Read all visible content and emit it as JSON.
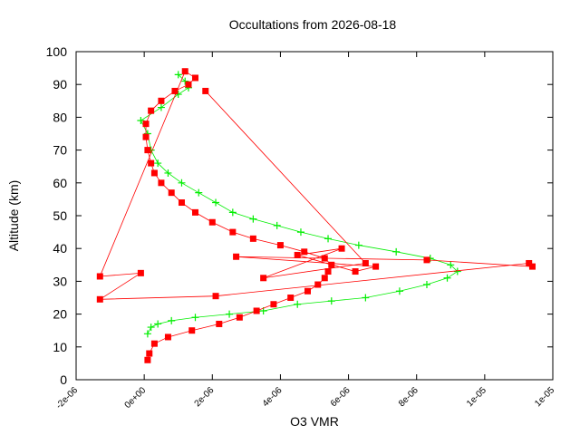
{
  "chart_data": {
    "type": "scatter",
    "title": "Occultations from 2026-08-18",
    "xlabel": "O3 VMR",
    "ylabel": "Altitude (km)",
    "xlim": [
      -2e-06,
      1.2e-05
    ],
    "ylim": [
      0,
      100
    ],
    "x_ticks": [
      -2e-06,
      0,
      2e-06,
      4e-06,
      6e-06,
      8e-06,
      1e-05,
      1.2e-05
    ],
    "x_tick_labels": [
      "-2e-06",
      "0e+00",
      "2e-06",
      "4e-06",
      "6e-06",
      "8e-06",
      "1e-05",
      "1e-05"
    ],
    "y_ticks": [
      0,
      10,
      20,
      30,
      40,
      50,
      60,
      70,
      80,
      90,
      100
    ],
    "y_tick_labels": [
      "0",
      "10",
      "20",
      "30",
      "40",
      "50",
      "60",
      "70",
      "80",
      "90",
      "100"
    ],
    "grid": false,
    "legend": "none",
    "series": [
      {
        "color": "#00ee00",
        "marker": "plus",
        "points": [
          [
            1e-07,
            14
          ],
          [
            2e-07,
            16
          ],
          [
            4e-07,
            17
          ],
          [
            8e-07,
            18
          ],
          [
            1.5e-06,
            19
          ],
          [
            2.5e-06,
            20
          ],
          [
            3.5e-06,
            21
          ],
          [
            4.5e-06,
            23
          ],
          [
            5.5e-06,
            24
          ],
          [
            6.5e-06,
            25
          ],
          [
            7.5e-06,
            27
          ],
          [
            8.3e-06,
            29
          ],
          [
            8.9e-06,
            31
          ],
          [
            9.2e-06,
            33
          ],
          [
            9e-06,
            35
          ],
          [
            8.4e-06,
            37
          ],
          [
            7.4e-06,
            39
          ],
          [
            6.3e-06,
            41
          ],
          [
            5.4e-06,
            43
          ],
          [
            4.6e-06,
            45
          ],
          [
            3.9e-06,
            47
          ],
          [
            3.2e-06,
            49
          ],
          [
            2.6e-06,
            51
          ],
          [
            2.1e-06,
            54
          ],
          [
            1.6e-06,
            57
          ],
          [
            1.1e-06,
            60
          ],
          [
            7e-07,
            63
          ],
          [
            4e-07,
            66
          ],
          [
            2e-07,
            70
          ],
          [
            1e-07,
            75
          ],
          [
            -1e-07,
            79
          ],
          [
            5e-07,
            83
          ],
          [
            1e-06,
            87
          ],
          [
            1.3e-06,
            89
          ],
          [
            1.2e-06,
            91
          ],
          [
            1e-06,
            93
          ]
        ]
      },
      {
        "color": "#ff0000",
        "marker": "square",
        "points": [
          [
            1e-07,
            6
          ],
          [
            1.5e-07,
            8
          ],
          [
            3e-07,
            11
          ],
          [
            7e-07,
            13
          ],
          [
            1.4e-06,
            15
          ],
          [
            2.2e-06,
            17
          ],
          [
            2.8e-06,
            19
          ],
          [
            3.3e-06,
            21
          ],
          [
            3.8e-06,
            23
          ],
          [
            4.3e-06,
            25
          ],
          [
            4.8e-06,
            27
          ],
          [
            5.1e-06,
            29
          ],
          [
            5.3e-06,
            31
          ],
          [
            5.4e-06,
            33
          ],
          [
            5.5e-06,
            35
          ],
          [
            5.3e-06,
            37
          ],
          [
            4.7e-06,
            39
          ],
          [
            4e-06,
            41
          ],
          [
            3.2e-06,
            43
          ],
          [
            2.6e-06,
            45
          ],
          [
            2e-06,
            48
          ],
          [
            1.5e-06,
            51
          ],
          [
            1.1e-06,
            54
          ],
          [
            8e-07,
            57
          ],
          [
            5e-07,
            60
          ],
          [
            3e-07,
            63
          ],
          [
            2e-07,
            66
          ],
          [
            1e-07,
            70
          ],
          [
            5e-08,
            74
          ],
          [
            5e-08,
            78
          ],
          [
            2e-07,
            82
          ],
          [
            5e-07,
            85
          ],
          [
            9e-07,
            88
          ],
          [
            1.3e-06,
            90
          ],
          [
            1.5e-06,
            92
          ],
          [
            1.2e-06,
            94
          ],
          [
            -1.3e-06,
            31.5
          ],
          [
            -1e-07,
            32.5
          ],
          [
            -1.3e-06,
            24.5
          ],
          [
            2.1e-06,
            25.5
          ],
          [
            1.13e-05,
            35.5
          ],
          [
            1.14e-05,
            34.5
          ],
          [
            8.3e-06,
            36.5
          ],
          [
            2.7e-06,
            37.5
          ],
          [
            6.8e-06,
            34.5
          ],
          [
            6.2e-06,
            33.0
          ],
          [
            4.5e-06,
            38.0
          ],
          [
            5.8e-06,
            40.0
          ],
          [
            3.5e-06,
            31.0
          ],
          [
            6.5e-06,
            35.5
          ],
          [
            1.8e-06,
            88.0
          ]
        ]
      }
    ]
  }
}
